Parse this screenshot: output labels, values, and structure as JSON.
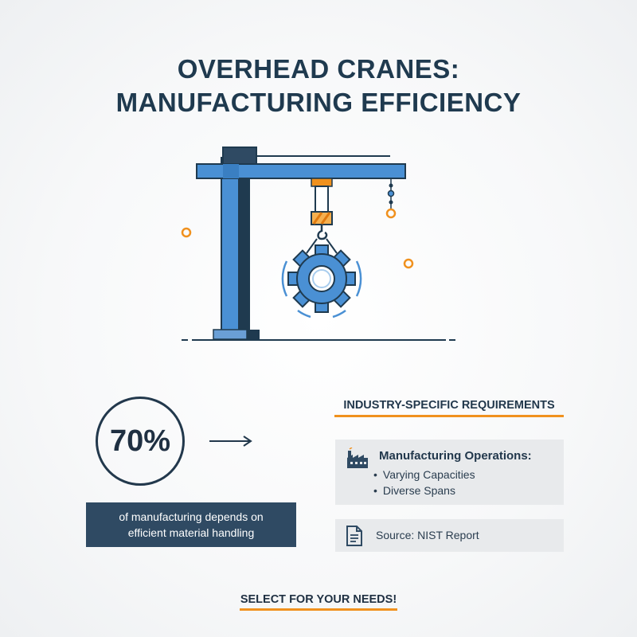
{
  "header": {
    "title_line1": "OVERHEAD CRANES:",
    "title_line2": "MANUFACTURING EFFICIENCY"
  },
  "illustration": {
    "icons": [
      "crane-icon",
      "hook-icon",
      "gear-icon"
    ],
    "colors": {
      "primary": "#4a90d4",
      "dark": "#1f3a4f",
      "accent": "#f0911e"
    }
  },
  "stat": {
    "value": "70%",
    "caption": "of manufacturing depends on efficient material handling"
  },
  "requirements": {
    "heading": "INDUSTRY-SPECIFIC REQUIREMENTS",
    "card_title": "Manufacturing Operations:",
    "items": [
      "Varying Capacities",
      "Diverse Spans"
    ],
    "icon": "factory-icon"
  },
  "source": {
    "text": "Source: NIST Report",
    "icon": "document-icon"
  },
  "cta": {
    "label": "SELECT FOR YOUR NEEDS!"
  }
}
